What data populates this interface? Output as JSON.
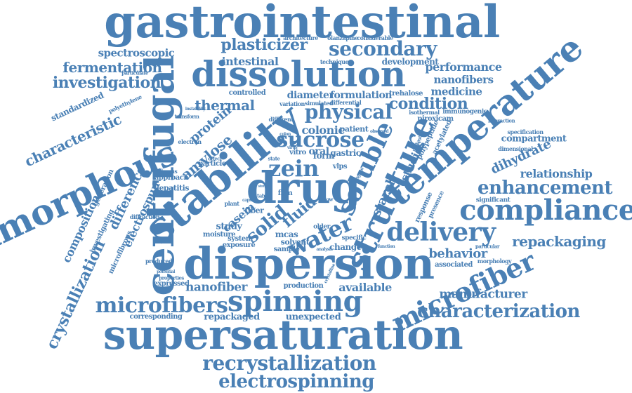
{
  "colors": {
    "word": "#4a80b5",
    "background": "#ffffff"
  },
  "words": {
    "gastrointestinal": "gastrointestinal",
    "dissolution": "dissolution",
    "supersaturation": "supersaturation",
    "dispersion": "dispersion",
    "drug": "drug",
    "stability": "stability",
    "centrifugal": "centrifugal",
    "amorphous": "amorphous",
    "temperature": "temperature",
    "structure": "structure",
    "soluble": "soluble",
    "compliance": "compliance",
    "delivery": "delivery",
    "microfiber": "microfiber",
    "spinning": "spinning",
    "microfibers": "microfibers",
    "characterization": "characterization",
    "recrystallization": "recrystallization",
    "electrospinning": "electrospinning",
    "secondary": "secondary",
    "plasticizer": "plasticizer",
    "physical": "physical",
    "sucrose": "sucrose",
    "zein": "zein",
    "enhancement": "enhancement",
    "investigation": "investigation",
    "fermentation": "fermentation",
    "spectroscopic": "spectroscopic",
    "characteristic": "characteristic",
    "crystallization": "crystallization",
    "water": "water",
    "solid": "solid",
    "fluid": "fluid",
    "starch": "starch",
    "condition": "condition",
    "repackaging": "repackaging",
    "relationship": "relationship",
    "dihydrate": "dihydrate",
    "performance": "performance",
    "nanofibers": "nanofibers",
    "medicine": "medicine",
    "behavior": "behavior",
    "manufacturer": "manufacturer",
    "available": "available",
    "nanofiber": "nanofiber",
    "repackaged": "repackaged",
    "unexpected": "unexpected",
    "corresponding": "corresponding",
    "expressed": "expressed",
    "thermal": "thermal",
    "protein": "protein",
    "amylose": "amylose",
    "intestinal": "intestinal",
    "colonic": "colonic",
    "diameter": "diameter",
    "formulation": "formulation",
    "casein": "casein",
    "oral": "oral",
    "gastric": "gastric",
    "studies": "studies",
    "difference": "difference",
    "electrospun": "electrospun",
    "composition": "composition",
    "standardized": "standardized",
    "development": "development",
    "architecture": "architecture",
    "olanzapine": "olanzapine",
    "considerable": "considerable",
    "technique": "technique",
    "compartment": "compartment",
    "specification": "specification",
    "significant": "significant",
    "dimensional": "dimensional",
    "hepatitis": "hepatitis",
    "approach": "approach",
    "particle": "particle",
    "fiber": "fiber",
    "study": "study",
    "moisture": "moisture",
    "system": "system",
    "exposure": "exposure",
    "sample": "sample",
    "mcas": "mcas",
    "solvent": "solvent",
    "change": "change",
    "production": "production",
    "associated": "associated",
    "morphology": "morphology",
    "particular": "particular",
    "patient": "patient",
    "form": "form",
    "vitro": "vitro",
    "film": "film",
    "polypeptide": "polypeptide",
    "acetylated": "acetylated",
    "piroxicam": "piroxicam",
    "immunogenic": "immunogenic",
    "isothermal": "isothermal",
    "trehalose": "trehalose",
    "differential": "differential",
    "simulated": "simulated",
    "variation": "variation",
    "controlled": "controlled",
    "polyethylene": "polyethylene",
    "particulate": "particulate",
    "different": "different",
    "generation": "generation",
    "investigating": "investigating",
    "microfibrous": "microfibrous",
    "diffraction": "diffraction",
    "produced": "produced",
    "properties": "properties",
    "fibrous": "fibrous",
    "electron": "electron",
    "transform": "transform",
    "instability": "instability",
    "effect": "effect",
    "response": "response",
    "presence": "presence",
    "specific": "specific",
    "plant": "plant",
    "interaction": "interaction",
    "packaging": "packaging",
    "observed": "observed",
    "colon": "colon",
    "state": "state",
    "virus": "virus",
    "tablet": "tablet",
    "older": "older",
    "capsule": "capsule",
    "potential": "potential",
    "analysis": "analysis",
    "function": "function",
    "crystalline": "crystalline",
    "original": "original",
    "storage": "storage",
    "vlps": "vlps",
    "low": "low"
  }
}
